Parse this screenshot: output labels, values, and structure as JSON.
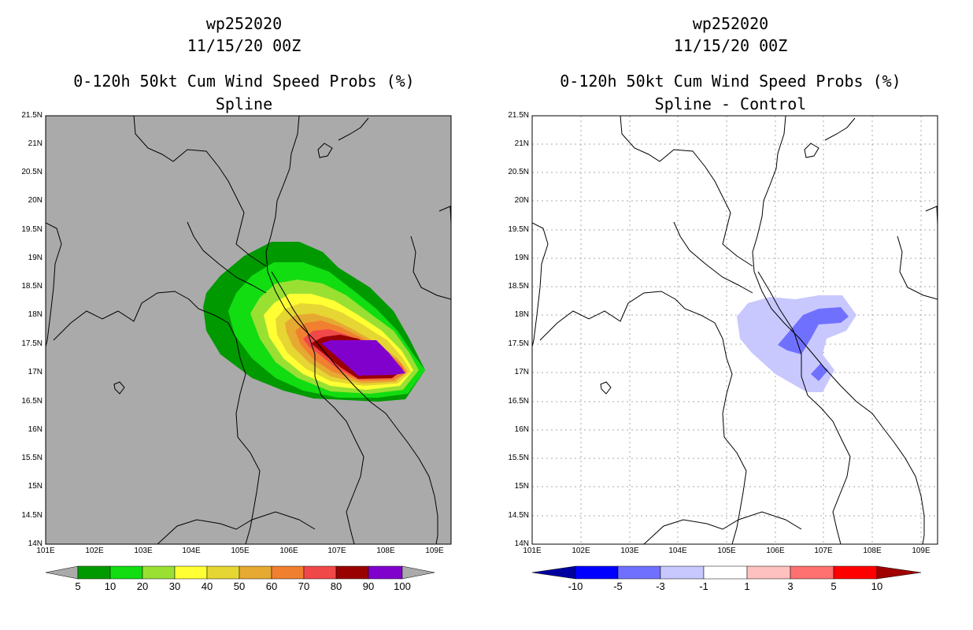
{
  "left": {
    "storm": "wp252020",
    "date": "11/15/20 00Z",
    "title": "0-120h 50kt Cum Wind Speed Probs (%)",
    "subtitle": "Spline",
    "colorbar_labels": [
      "5",
      "10",
      "20",
      "30",
      "40",
      "50",
      "60",
      "70",
      "80",
      "90",
      "100"
    ],
    "colorbar_colors": [
      "#009900",
      "#11dd11",
      "#99e033",
      "#ffff33",
      "#e6d633",
      "#e6aa33",
      "#f08030",
      "#f04848",
      "#990000",
      "#8000cc"
    ]
  },
  "right": {
    "storm": "wp252020",
    "date": "11/15/20 00Z",
    "title": "0-120h 50kt Cum Wind Speed Probs (%)",
    "subtitle": "Spline - Control",
    "colorbar_labels": [
      "-10",
      "-5",
      "-3",
      "-1",
      "1",
      "3",
      "5",
      "10"
    ],
    "colorbar_colors": [
      "#0000a0",
      "#0000ff",
      "#7070ff",
      "#c8c8ff",
      "#ffffff",
      "#ffc0c0",
      "#ff7070",
      "#ff0000",
      "#a00000"
    ]
  },
  "lat_labels": [
    "21.5N",
    "21N",
    "20.5N",
    "20N",
    "19.5N",
    "19N",
    "18.5N",
    "18N",
    "17.5N",
    "17N",
    "16.5N",
    "16N",
    "15.5N",
    "15N",
    "14.5N",
    "14N"
  ],
  "lon_labels": [
    "101E",
    "102E",
    "103E",
    "104E",
    "105E",
    "106E",
    "107E",
    "108E",
    "109E"
  ]
}
